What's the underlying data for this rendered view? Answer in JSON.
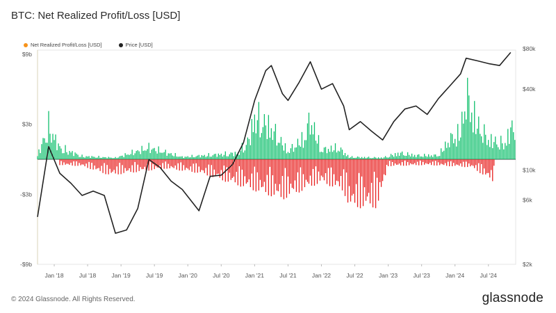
{
  "title": "BTC: Net Realized Profit/Loss [USD]",
  "legend": [
    {
      "label": "Net Realized Profit/Loss [USD]",
      "color": "#f7931a"
    },
    {
      "label": "Price [USD]",
      "color": "#222222"
    }
  ],
  "footer": "© 2024 Glassnode. All Rights Reserved.",
  "brand": "glassnode",
  "chart_data": {
    "type": "line",
    "x_ticks": [
      "Jan '18",
      "Jul '18",
      "Jan '19",
      "Jul '19",
      "Jan '20",
      "Jul '20",
      "Jan '21",
      "Jul '21",
      "Jan '22",
      "Jul '22",
      "Jan '23",
      "Jul '23",
      "Jan '24",
      "Jul '24"
    ],
    "x_range": [
      "2017-10",
      "2024-11"
    ],
    "y_left": {
      "ticks": [
        "$9b",
        "$3b",
        "-$3b",
        "-$9b"
      ],
      "range_b": [
        -9,
        9
      ]
    },
    "y_right": {
      "ticks": [
        "$80k",
        "$40k",
        "$10k",
        "$6k",
        "$2k"
      ],
      "scale": "log",
      "range": [
        2000,
        80000
      ]
    },
    "colors": {
      "profit": "#0fbf6c",
      "loss": "#e8201f",
      "price": "#222222"
    },
    "series": [
      {
        "name": "Price [USD]",
        "axis": "right",
        "x": [
          "2017-10",
          "2017-12",
          "2018-02",
          "2018-04",
          "2018-06",
          "2018-08",
          "2018-10",
          "2018-12",
          "2019-02",
          "2019-04",
          "2019-06",
          "2019-08",
          "2019-10",
          "2019-12",
          "2020-03",
          "2020-05",
          "2020-07",
          "2020-09",
          "2020-11",
          "2021-01",
          "2021-03",
          "2021-04",
          "2021-06",
          "2021-07",
          "2021-09",
          "2021-11",
          "2022-01",
          "2022-03",
          "2022-05",
          "2022-06",
          "2022-08",
          "2022-10",
          "2022-12",
          "2023-02",
          "2023-04",
          "2023-06",
          "2023-08",
          "2023-10",
          "2023-12",
          "2024-02",
          "2024-03",
          "2024-05",
          "2024-07",
          "2024-09",
          "2024-11"
        ],
        "values": [
          4500,
          15000,
          9500,
          8000,
          6500,
          7000,
          6500,
          3400,
          3600,
          5200,
          12000,
          10500,
          8300,
          7200,
          5000,
          9000,
          9200,
          11000,
          16000,
          33000,
          55000,
          60000,
          37000,
          33000,
          45000,
          64000,
          40000,
          44000,
          30000,
          20000,
          23000,
          19500,
          16800,
          23000,
          28500,
          30000,
          26000,
          34000,
          42000,
          52000,
          68000,
          65000,
          62000,
          60000,
          75000
        ]
      },
      {
        "name": "Net Realized Profit/Loss [USD] (positive envelope, $b)",
        "axis": "left",
        "x": [
          "2017-10",
          "2017-12",
          "2018-02",
          "2018-06",
          "2018-12",
          "2019-06",
          "2019-12",
          "2020-06",
          "2020-10",
          "2020-12",
          "2021-01",
          "2021-04",
          "2021-07",
          "2021-10",
          "2021-11",
          "2022-01",
          "2022-04",
          "2022-06",
          "2022-12",
          "2023-03",
          "2023-06",
          "2023-10",
          "2023-12",
          "2024-02",
          "2024-03",
          "2024-05",
          "2024-07",
          "2024-10",
          "2024-11"
        ],
        "values": [
          0.5,
          4.2,
          1.5,
          0.4,
          0.2,
          1.5,
          0.3,
          0.6,
          0.8,
          2.5,
          5.5,
          4.0,
          1.0,
          2.8,
          5.2,
          1.2,
          1.5,
          0.3,
          0.2,
          0.8,
          0.5,
          0.5,
          2.5,
          3.5,
          8.3,
          4.5,
          2.5,
          2.0,
          4.0
        ]
      },
      {
        "name": "Net Realized Profit/Loss [USD] (negative envelope, $b)",
        "axis": "left",
        "x": [
          "2018-02",
          "2018-06",
          "2018-11",
          "2019-09",
          "2020-03",
          "2021-06",
          "2022-01",
          "2022-05",
          "2022-06",
          "2022-11",
          "2023-01",
          "2023-08",
          "2024-04",
          "2024-08"
        ],
        "values": [
          -0.5,
          -0.6,
          -1.4,
          -0.8,
          -1.2,
          -3.5,
          -2.0,
          -2.8,
          -4.2,
          -4.2,
          -0.6,
          -0.5,
          -0.7,
          -2.0
        ]
      }
    ]
  }
}
